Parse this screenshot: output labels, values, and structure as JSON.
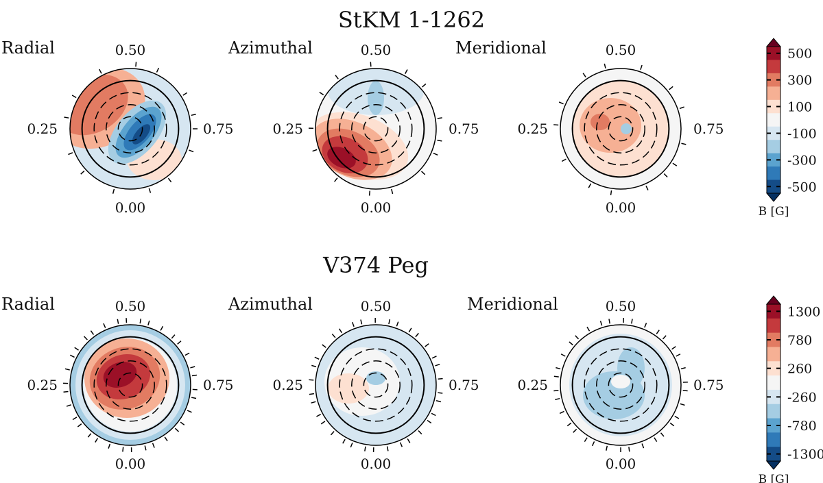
{
  "chart_data": [
    {
      "type": "heatmap",
      "title": "StKM 1-1262",
      "panels": [
        {
          "label": "Radial",
          "dominant": "red upper-left, blue centre/right"
        },
        {
          "label": "Azimuthal",
          "dominant": "strong red lower-left, weak blue top"
        },
        {
          "label": "Meridional",
          "dominant": "weak red rings"
        }
      ],
      "phase_labels": {
        "top": "0.50",
        "left": "0.25",
        "right": "0.75",
        "bottom": "0.00"
      },
      "colorbar": {
        "label": "B [G]",
        "ticks": [
          "500",
          "300",
          "100",
          "-100",
          "-300",
          "-500"
        ],
        "range": [
          -500,
          500
        ]
      }
    },
    {
      "type": "heatmap",
      "title": "V374 Peg",
      "panels": [
        {
          "label": "Radial",
          "dominant": "strong red centre, blue rim"
        },
        {
          "label": "Azimuthal",
          "dominant": "weak blue/white"
        },
        {
          "label": "Meridional",
          "dominant": "light blue"
        }
      ],
      "phase_labels": {
        "top": "0.50",
        "left": "0.25",
        "right": "0.75",
        "bottom": "0.00"
      },
      "colorbar": {
        "label": "B [G]",
        "ticks": [
          "1300",
          "780",
          "260",
          "-260",
          "-780",
          "-1300"
        ],
        "range": [
          -1300,
          1300
        ]
      }
    }
  ],
  "colors": [
    "#9b1027",
    "#c43a3d",
    "#e27b62",
    "#f6b094",
    "#fde0d1",
    "#f5f5f5",
    "#d6e6f1",
    "#a5cde3",
    "#5ba3cf",
    "#2f7ab8",
    "#144c87"
  ],
  "extend_colors": {
    "high": "#67001f",
    "low": "#053061"
  }
}
